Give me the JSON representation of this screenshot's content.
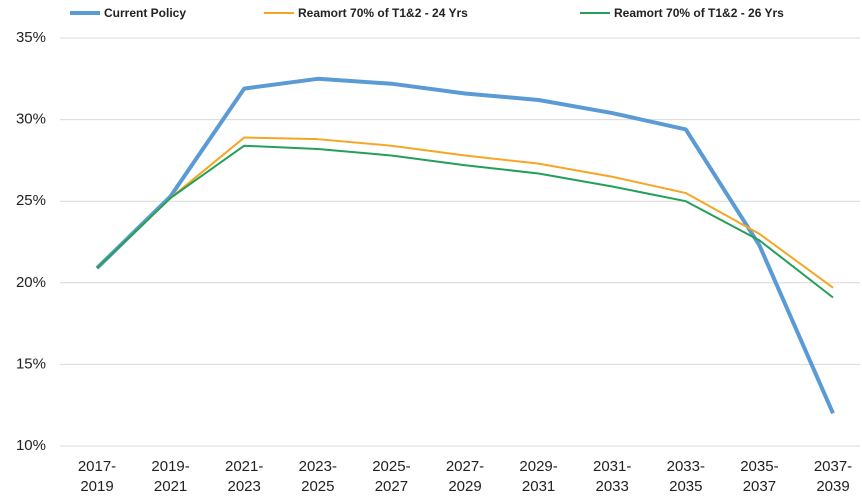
{
  "chart_data": {
    "type": "line",
    "categories": [
      "2017-2019",
      "2019-2021",
      "2021-2023",
      "2023-2025",
      "2025-2027",
      "2027-2029",
      "2029-2031",
      "2031-2033",
      "2033-2035",
      "2035-2037",
      "2037-2039"
    ],
    "series": [
      {
        "name": "Current Policy",
        "color": "#5b9bd5",
        "values": [
          20.9,
          25.3,
          31.9,
          32.5,
          32.2,
          31.6,
          31.2,
          30.4,
          29.4,
          22.3,
          12.0
        ]
      },
      {
        "name": "Reamort 70% of T1&2 - 24 Yrs",
        "color": "#f5a623",
        "values": [
          20.9,
          25.2,
          28.9,
          28.8,
          28.4,
          27.8,
          27.3,
          26.5,
          25.5,
          23.0,
          19.7
        ]
      },
      {
        "name": "Reamort 70% of T1&2 - 26 Yrs",
        "color": "#22a05a",
        "values": [
          20.9,
          25.2,
          28.4,
          28.2,
          27.8,
          27.2,
          26.7,
          25.9,
          25.0,
          22.6,
          19.1
        ]
      }
    ],
    "ylim": [
      10,
      35
    ],
    "yticks": [
      {
        "value": 10,
        "label": "10%"
      },
      {
        "value": 15,
        "label": "15%"
      },
      {
        "value": 20,
        "label": "20%"
      },
      {
        "value": 25,
        "label": "25%"
      },
      {
        "value": 30,
        "label": "30%"
      },
      {
        "value": 35,
        "label": "35%"
      }
    ],
    "grid": true,
    "legend": "top"
  }
}
